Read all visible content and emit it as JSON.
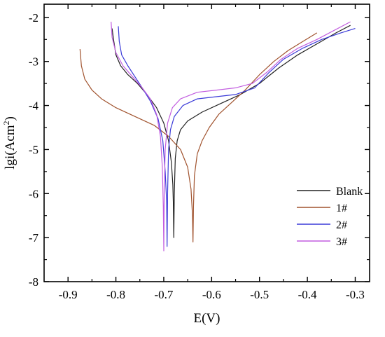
{
  "chart_data": {
    "type": "line",
    "title": "",
    "xlabel": "E(V)",
    "ylabel": "lgi(Acm²)",
    "ylabel_parts": {
      "main": "lgi(Acm",
      "sup": "2",
      "tail": ")"
    },
    "xlim": [
      -0.95,
      -0.27
    ],
    "ylim": [
      -8,
      -1.7
    ],
    "x_ticks": [
      -0.9,
      -0.8,
      -0.7,
      -0.6,
      -0.5,
      -0.4,
      -0.3
    ],
    "x_tick_labels": [
      "-0.9",
      "-0.8",
      "-0.7",
      "-0.6",
      "-0.5",
      "-0.4",
      "-0.3"
    ],
    "y_ticks": [
      -2,
      -3,
      -4,
      -5,
      -6,
      -7,
      -8
    ],
    "y_tick_labels": [
      "-2",
      "-3",
      "-4",
      "-5",
      "-6",
      "-7",
      "-8"
    ],
    "grid": false,
    "legend_position": "bottom-right",
    "series": [
      {
        "name": "Blank",
        "color": "#222222",
        "cathodic": [
          [
            -0.808,
            -2.25
          ],
          [
            -0.805,
            -2.5
          ],
          [
            -0.8,
            -2.85
          ],
          [
            -0.79,
            -3.1
          ],
          [
            -0.775,
            -3.3
          ],
          [
            -0.755,
            -3.5
          ],
          [
            -0.735,
            -3.75
          ],
          [
            -0.715,
            -4.05
          ],
          [
            -0.7,
            -4.4
          ],
          [
            -0.69,
            -4.8
          ],
          [
            -0.684,
            -5.3
          ],
          [
            -0.681,
            -5.8
          ],
          [
            -0.68,
            -6.2
          ]
        ],
        "anodic": [
          [
            -0.68,
            -6.2
          ],
          [
            -0.679,
            -7.0
          ],
          [
            -0.678,
            -6.0
          ],
          [
            -0.676,
            -5.2
          ],
          [
            -0.672,
            -4.8
          ],
          [
            -0.665,
            -4.55
          ],
          [
            -0.65,
            -4.35
          ],
          [
            -0.62,
            -4.15
          ],
          [
            -0.58,
            -3.95
          ],
          [
            -0.54,
            -3.75
          ],
          [
            -0.5,
            -3.5
          ],
          [
            -0.46,
            -3.15
          ],
          [
            -0.42,
            -2.85
          ],
          [
            -0.38,
            -2.6
          ],
          [
            -0.34,
            -2.35
          ],
          [
            -0.31,
            -2.18
          ]
        ]
      },
      {
        "name": "1#",
        "color": "#a0522d",
        "cathodic": [
          [
            -0.875,
            -2.72
          ],
          [
            -0.872,
            -3.1
          ],
          [
            -0.865,
            -3.4
          ],
          [
            -0.85,
            -3.65
          ],
          [
            -0.83,
            -3.85
          ],
          [
            -0.8,
            -4.05
          ],
          [
            -0.76,
            -4.25
          ],
          [
            -0.72,
            -4.45
          ],
          [
            -0.69,
            -4.7
          ],
          [
            -0.665,
            -5.0
          ],
          [
            -0.65,
            -5.4
          ],
          [
            -0.643,
            -5.9
          ],
          [
            -0.64,
            -6.5
          ],
          [
            -0.639,
            -7.1
          ]
        ],
        "anodic": [
          [
            -0.639,
            -7.1
          ],
          [
            -0.638,
            -6.3
          ],
          [
            -0.636,
            -5.6
          ],
          [
            -0.63,
            -5.1
          ],
          [
            -0.62,
            -4.8
          ],
          [
            -0.605,
            -4.5
          ],
          [
            -0.585,
            -4.2
          ],
          [
            -0.56,
            -3.95
          ],
          [
            -0.53,
            -3.65
          ],
          [
            -0.5,
            -3.3
          ],
          [
            -0.47,
            -3.0
          ],
          [
            -0.44,
            -2.75
          ],
          [
            -0.41,
            -2.55
          ],
          [
            -0.38,
            -2.35
          ]
        ]
      },
      {
        "name": "2#",
        "color": "#3a3ad8",
        "cathodic": [
          [
            -0.795,
            -2.2
          ],
          [
            -0.793,
            -2.55
          ],
          [
            -0.788,
            -2.85
          ],
          [
            -0.775,
            -3.1
          ],
          [
            -0.76,
            -3.35
          ],
          [
            -0.745,
            -3.6
          ],
          [
            -0.728,
            -3.9
          ],
          [
            -0.712,
            -4.3
          ],
          [
            -0.702,
            -4.8
          ],
          [
            -0.697,
            -5.5
          ],
          [
            -0.694,
            -6.2
          ],
          [
            -0.693,
            -7.2
          ]
        ],
        "anodic": [
          [
            -0.693,
            -7.2
          ],
          [
            -0.692,
            -6.0
          ],
          [
            -0.69,
            -5.0
          ],
          [
            -0.686,
            -4.55
          ],
          [
            -0.678,
            -4.25
          ],
          [
            -0.66,
            -4.0
          ],
          [
            -0.63,
            -3.85
          ],
          [
            -0.59,
            -3.8
          ],
          [
            -0.55,
            -3.75
          ],
          [
            -0.51,
            -3.6
          ],
          [
            -0.48,
            -3.25
          ],
          [
            -0.45,
            -2.95
          ],
          [
            -0.41,
            -2.7
          ],
          [
            -0.37,
            -2.5
          ],
          [
            -0.33,
            -2.35
          ],
          [
            -0.3,
            -2.25
          ]
        ]
      },
      {
        "name": "3#",
        "color": "#c25ee0",
        "cathodic": [
          [
            -0.81,
            -2.1
          ],
          [
            -0.808,
            -2.45
          ],
          [
            -0.8,
            -2.8
          ],
          [
            -0.785,
            -3.1
          ],
          [
            -0.765,
            -3.35
          ],
          [
            -0.745,
            -3.6
          ],
          [
            -0.728,
            -3.85
          ],
          [
            -0.715,
            -4.2
          ],
          [
            -0.707,
            -4.7
          ],
          [
            -0.703,
            -5.4
          ],
          [
            -0.701,
            -6.3
          ],
          [
            -0.7,
            -7.3
          ]
        ],
        "anodic": [
          [
            -0.7,
            -7.3
          ],
          [
            -0.699,
            -6.0
          ],
          [
            -0.697,
            -5.0
          ],
          [
            -0.692,
            -4.4
          ],
          [
            -0.682,
            -4.05
          ],
          [
            -0.665,
            -3.85
          ],
          [
            -0.63,
            -3.7
          ],
          [
            -0.59,
            -3.65
          ],
          [
            -0.55,
            -3.6
          ],
          [
            -0.515,
            -3.5
          ],
          [
            -0.485,
            -3.25
          ],
          [
            -0.455,
            -2.95
          ],
          [
            -0.42,
            -2.7
          ],
          [
            -0.38,
            -2.5
          ],
          [
            -0.345,
            -2.3
          ],
          [
            -0.31,
            -2.1
          ]
        ]
      }
    ]
  }
}
